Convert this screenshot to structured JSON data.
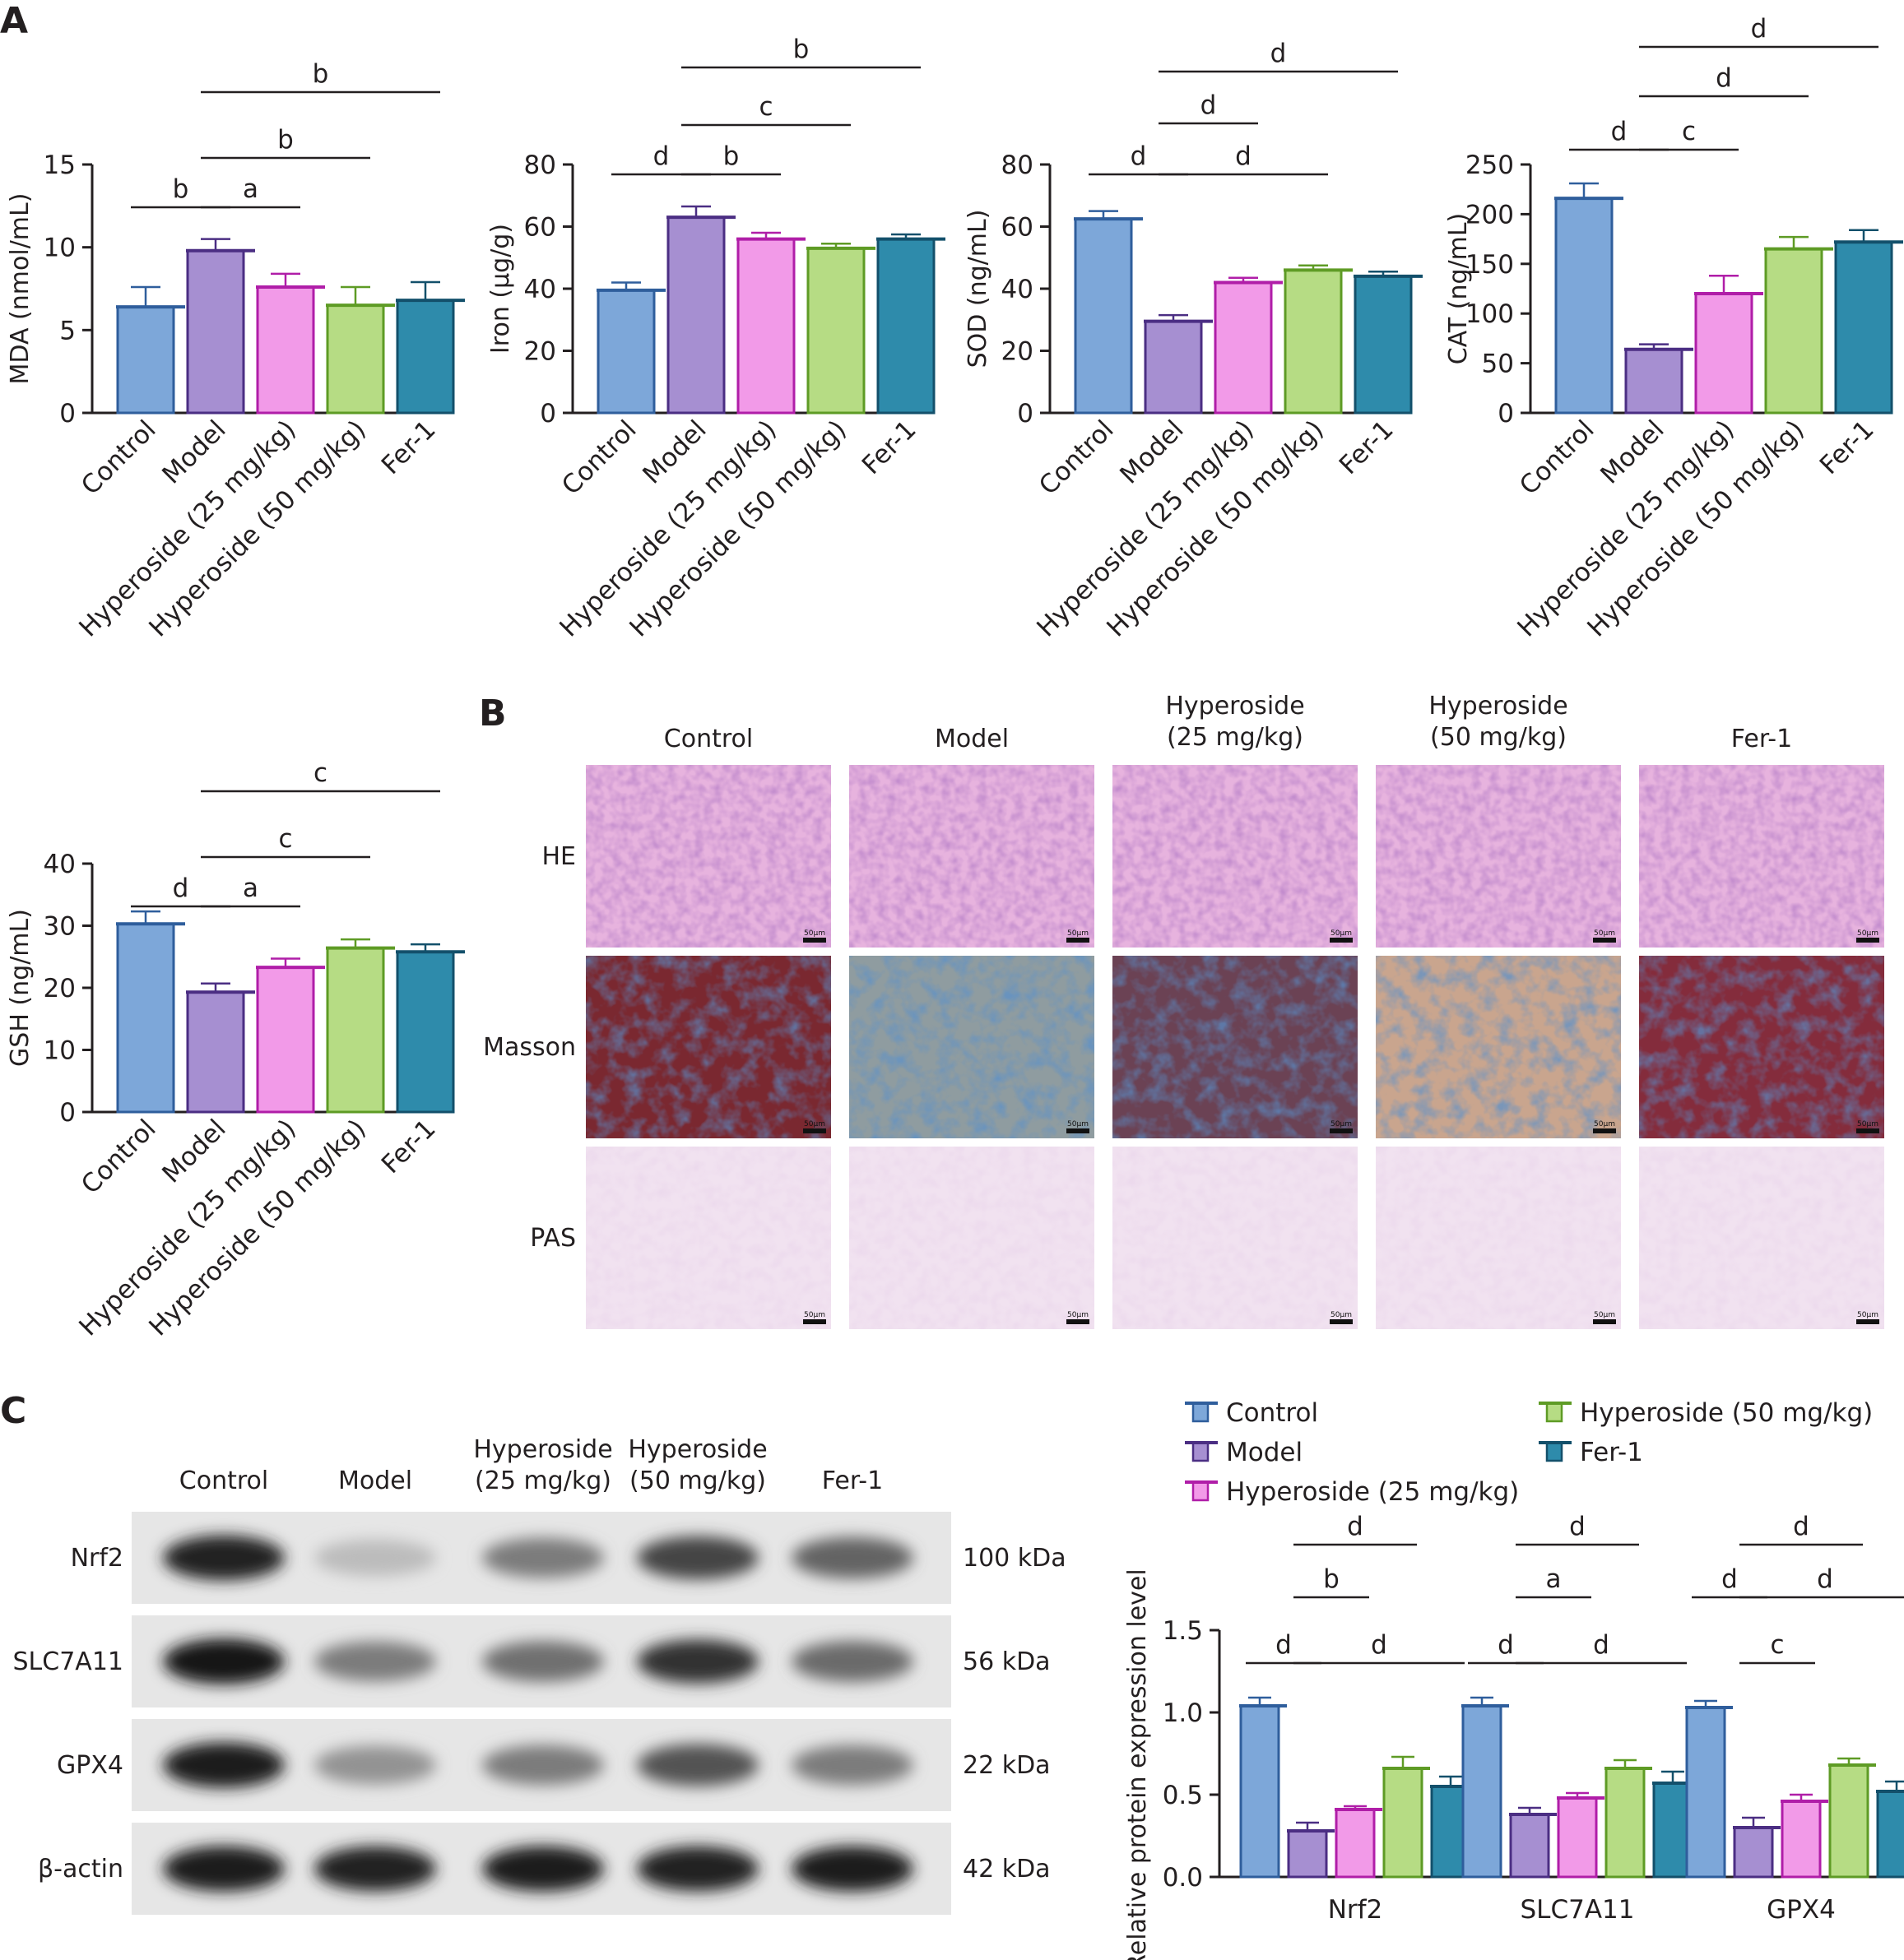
{
  "panels": {
    "a": "A",
    "b": "B",
    "c": "C"
  },
  "colors": {
    "control": "#7da7d9",
    "control_edge": "#2f5e9c",
    "model": "#a68fd1",
    "model_edge": "#4b2e83",
    "hyp25": "#f29ae8",
    "hyp25_edge": "#b01ea8",
    "hyp50": "#b6dc84",
    "hyp50_edge": "#5e9b25",
    "fer1": "#2e8bab",
    "fer1_edge": "#13506b",
    "axis": "#231f20"
  },
  "groups": [
    "Control",
    "Model",
    "Hyperoside (25 mg/kg)",
    "Hyperoside (50 mg/kg)",
    "Fer-1"
  ],
  "chart_data": [
    {
      "id": "mda",
      "type": "bar",
      "ylabel": "MDA (nmol/mL)",
      "ylim": [
        0,
        15
      ],
      "yticks": [
        "0",
        "5",
        "10",
        "15"
      ],
      "categories": [
        "Control",
        "Model",
        "Hyperoside (25 mg/kg)",
        "Hyperoside (50 mg/kg)",
        "Fer-1"
      ],
      "values": [
        6.4,
        9.8,
        7.6,
        6.5,
        6.8
      ],
      "errors": [
        1.2,
        0.7,
        0.8,
        1.1,
        1.1
      ],
      "significance": [
        {
          "from": 0,
          "to": 1,
          "label": "b"
        },
        {
          "from": 1,
          "to": 2,
          "label": "a"
        },
        {
          "from": 1,
          "to": 3,
          "label": "b"
        },
        {
          "from": 1,
          "to": 4,
          "label": "b"
        }
      ]
    },
    {
      "id": "iron",
      "type": "bar",
      "ylabel": "Iron (μg/g)",
      "ylim": [
        0,
        80
      ],
      "yticks": [
        "0",
        "20",
        "40",
        "60",
        "80"
      ],
      "categories": [
        "Control",
        "Model",
        "Hyperoside (25 mg/kg)",
        "Hyperoside (50 mg/kg)",
        "Fer-1"
      ],
      "values": [
        39.5,
        63,
        56,
        53,
        56
      ],
      "errors": [
        2.5,
        3.5,
        2.0,
        1.5,
        1.5
      ],
      "significance": [
        {
          "from": 0,
          "to": 1,
          "label": "d"
        },
        {
          "from": 1,
          "to": 2,
          "label": "b"
        },
        {
          "from": 1,
          "to": 3,
          "label": "c"
        },
        {
          "from": 1,
          "to": 4,
          "label": "b"
        }
      ]
    },
    {
      "id": "sod",
      "type": "bar",
      "ylabel": "SOD (ng/mL)",
      "ylim": [
        0,
        80
      ],
      "yticks": [
        "0",
        "20",
        "40",
        "60",
        "80"
      ],
      "categories": [
        "Control",
        "Model",
        "Hyperoside (25 mg/kg)",
        "Hyperoside (50 mg/kg)",
        "Fer-1"
      ],
      "values": [
        62.5,
        29.5,
        42,
        46,
        44
      ],
      "errors": [
        2.5,
        2.0,
        1.5,
        1.5,
        1.5
      ],
      "significance": [
        {
          "from": 0,
          "to": 1,
          "label": "d"
        },
        {
          "from": 1,
          "to": 3,
          "label": "d"
        },
        {
          "from": 1,
          "to": 2,
          "label": "d"
        },
        {
          "from": 1,
          "to": 4,
          "label": "d"
        }
      ]
    },
    {
      "id": "cat",
      "type": "bar",
      "ylabel": "CAT (ng/mL)",
      "ylim": [
        0,
        250
      ],
      "yticks": [
        "0",
        "50",
        "100",
        "150",
        "200",
        "250"
      ],
      "categories": [
        "Control",
        "Model",
        "Hyperoside (25 mg/kg)",
        "Hyperoside (50 mg/kg)",
        "Fer-1"
      ],
      "values": [
        216,
        64,
        120,
        165,
        172
      ],
      "errors": [
        15,
        5,
        18,
        12,
        12
      ],
      "significance": [
        {
          "from": 0,
          "to": 1,
          "label": "d"
        },
        {
          "from": 1,
          "to": 2,
          "label": "c"
        },
        {
          "from": 1,
          "to": 3,
          "label": "d"
        },
        {
          "from": 1,
          "to": 4,
          "label": "d"
        }
      ]
    },
    {
      "id": "gsh",
      "type": "bar",
      "ylabel": "GSH (ng/mL)",
      "ylim": [
        0,
        40
      ],
      "yticks": [
        "0",
        "10",
        "20",
        "30",
        "40"
      ],
      "categories": [
        "Control",
        "Model",
        "Hyperoside (25 mg/kg)",
        "Hyperoside (50 mg/kg)",
        "Fer-1"
      ],
      "values": [
        30.3,
        19.3,
        23.3,
        26.4,
        25.8
      ],
      "errors": [
        2.0,
        1.4,
        1.4,
        1.4,
        1.2
      ],
      "significance": [
        {
          "from": 0,
          "to": 1,
          "label": "d"
        },
        {
          "from": 1,
          "to": 2,
          "label": "a"
        },
        {
          "from": 1,
          "to": 3,
          "label": "c"
        },
        {
          "from": 1,
          "to": 4,
          "label": "c"
        }
      ]
    },
    {
      "id": "protein",
      "type": "bar",
      "ylabel": "Relative protein expression level",
      "ylim": [
        0,
        1.5
      ],
      "yticks": [
        "0.0",
        "0.5",
        "1.0",
        "1.5"
      ],
      "categories": [
        "Nrf2",
        "SLC7A11",
        "GPX4"
      ],
      "series": [
        {
          "name": "Control",
          "values": [
            1.04,
            1.04,
            1.03
          ],
          "errors": [
            0.05,
            0.05,
            0.04
          ]
        },
        {
          "name": "Model",
          "values": [
            0.28,
            0.38,
            0.3
          ],
          "errors": [
            0.05,
            0.04,
            0.06
          ]
        },
        {
          "name": "Hyperoside (25 mg/kg)",
          "values": [
            0.41,
            0.48,
            0.46
          ],
          "errors": [
            0.02,
            0.03,
            0.04
          ]
        },
        {
          "name": "Hyperoside (50 mg/kg)",
          "values": [
            0.66,
            0.66,
            0.68
          ],
          "errors": [
            0.07,
            0.05,
            0.04
          ]
        },
        {
          "name": "Fer-1",
          "values": [
            0.55,
            0.57,
            0.52
          ],
          "errors": [
            0.06,
            0.07,
            0.06
          ]
        }
      ],
      "significance": [
        {
          "cat": 0,
          "from": 0,
          "to": 1,
          "label": "d",
          "row": 0
        },
        {
          "cat": 0,
          "from": 1,
          "to": 4,
          "label": "d",
          "row": 0
        },
        {
          "cat": 0,
          "from": 1,
          "to": 2,
          "label": "b",
          "row": 1
        },
        {
          "cat": 0,
          "from": 1,
          "to": 3,
          "label": "d",
          "row": 2
        },
        {
          "cat": 1,
          "from": 0,
          "to": 1,
          "label": "d",
          "row": 0
        },
        {
          "cat": 1,
          "from": 1,
          "to": 4,
          "label": "d",
          "row": 0
        },
        {
          "cat": 1,
          "from": 1,
          "to": 2,
          "label": "a",
          "row": 1
        },
        {
          "cat": 1,
          "from": 1,
          "to": 3,
          "label": "d",
          "row": 2
        },
        {
          "cat": 2,
          "from": 1,
          "to": 2,
          "label": "c",
          "row": 0
        },
        {
          "cat": 2,
          "from": 0,
          "to": 1,
          "label": "d",
          "row": 1
        },
        {
          "cat": 2,
          "from": 1,
          "to": 4,
          "label": "d",
          "row": 1
        },
        {
          "cat": 2,
          "from": 1,
          "to": 3,
          "label": "d",
          "row": 2
        }
      ]
    }
  ],
  "histology": {
    "columns": [
      "Control",
      "Model",
      "Hyperoside|(25 mg/kg)",
      "Hyperoside|(50 mg/kg)",
      "Fer-1"
    ],
    "rows": [
      "HE",
      "Masson",
      "PAS"
    ],
    "scale_bar": "50μm"
  },
  "western": {
    "columns": [
      "Control",
      "Model",
      "Hyperoside|(25 mg/kg)",
      "Hyperoside|(50 mg/kg)",
      "Fer-1"
    ],
    "bands": [
      {
        "name": "Nrf2",
        "size": "100 kDa",
        "intensity": [
          0.92,
          0.28,
          0.55,
          0.78,
          0.65
        ]
      },
      {
        "name": "SLC7A11",
        "size": "56 kDa",
        "intensity": [
          0.97,
          0.55,
          0.6,
          0.85,
          0.62
        ]
      },
      {
        "name": "GPX4",
        "size": "22 kDa",
        "intensity": [
          0.95,
          0.45,
          0.55,
          0.72,
          0.55
        ]
      },
      {
        "name": "β-actin",
        "size": "42 kDa",
        "intensity": [
          0.95,
          0.92,
          0.95,
          0.93,
          0.95
        ]
      }
    ]
  },
  "legend": [
    "Control",
    "Model",
    "Hyperoside (25 mg/kg)",
    "Hyperoside (50 mg/kg)",
    "Fer-1"
  ]
}
